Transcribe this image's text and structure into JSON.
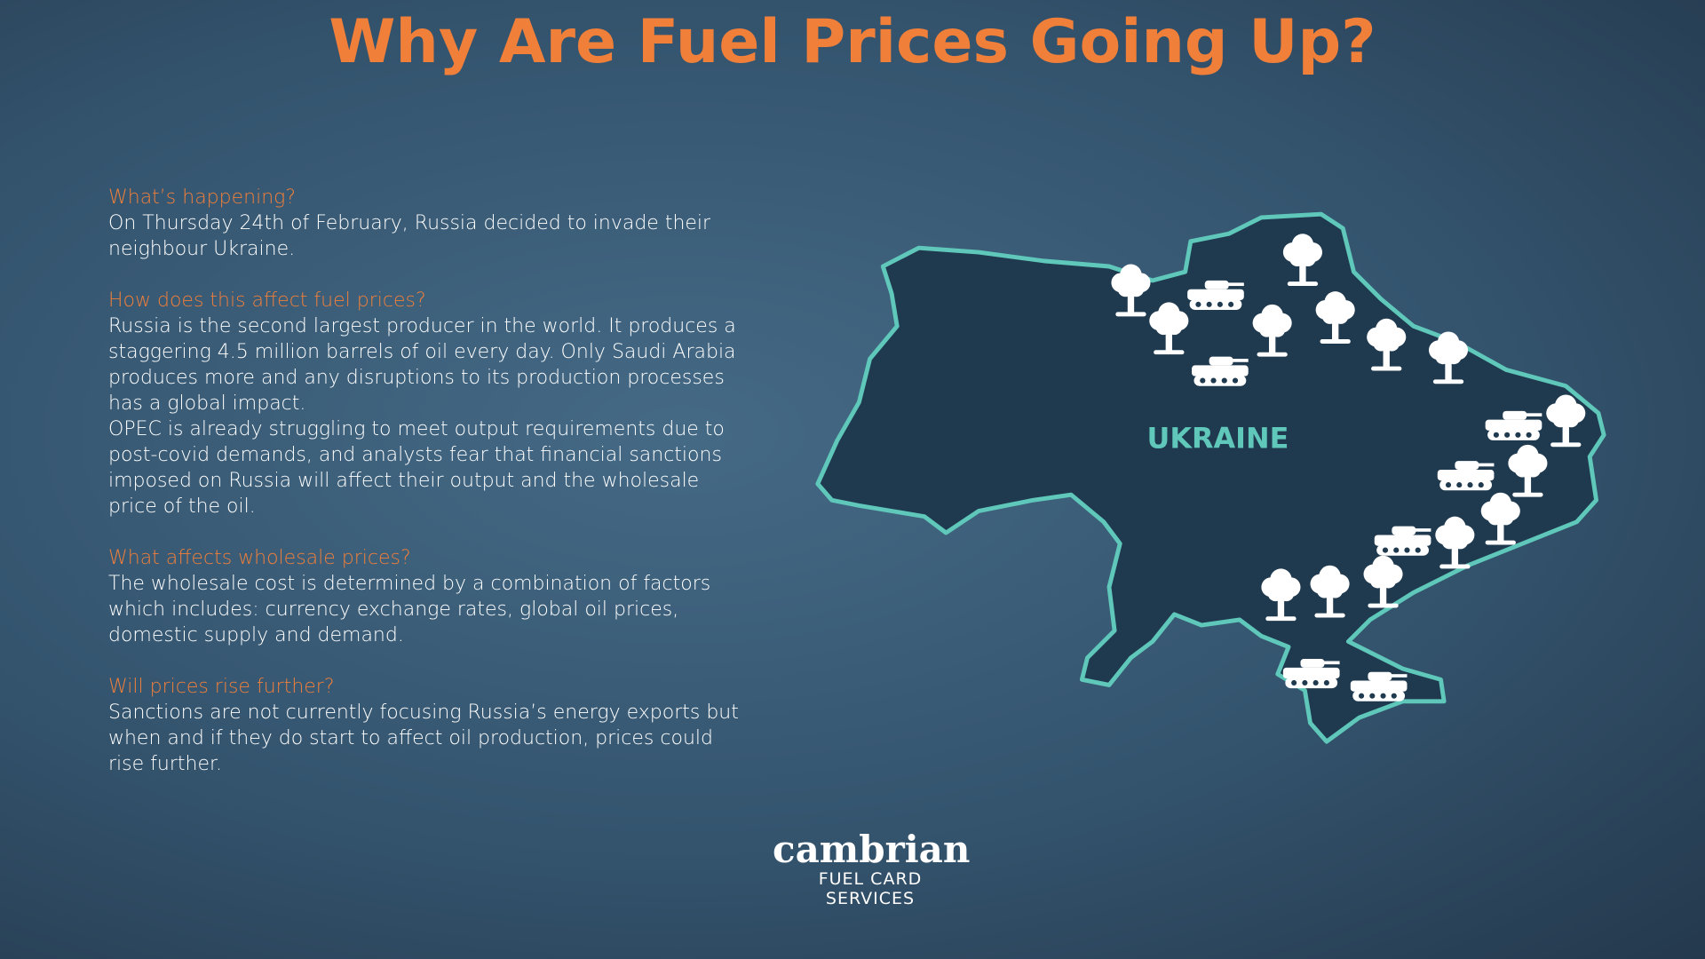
{
  "title": "Why Are Fuel Prices Going Up?",
  "sections": [
    {
      "heading": "What’s happening?",
      "paragraphs": [
        "On Thursday 24th of February, Russia decided to invade their neighbour Ukraine."
      ]
    },
    {
      "heading": "How does this affect fuel prices?",
      "paragraphs": [
        "Russia is the second largest producer in the world. It produces a staggering 4.5 million barrels of oil every day. Only Saudi Arabia produces more and any disruptions to its production processes has a global impact.",
        "OPEC is already struggling to meet output requirements due to post-covid demands, and analysts fear that financial sanctions imposed on Russia will affect their output and the wholesale price of the oil."
      ]
    },
    {
      "heading": "What affects wholesale prices?",
      "paragraphs": [
        "The wholesale cost is determined by a combination of factors which includes: currency exchange rates, global oil prices, domestic supply and demand."
      ]
    },
    {
      "heading": "Will prices rise further?",
      "paragraphs": [
        "Sanctions are not currently focusing Russia’s energy exports but when and if they do start to affect oil production, prices could rise further."
      ]
    }
  ],
  "map": {
    "label": "UKRAINE"
  },
  "logo": {
    "name": "cambrian",
    "tagline": "FUEL CARD SERVICES"
  }
}
